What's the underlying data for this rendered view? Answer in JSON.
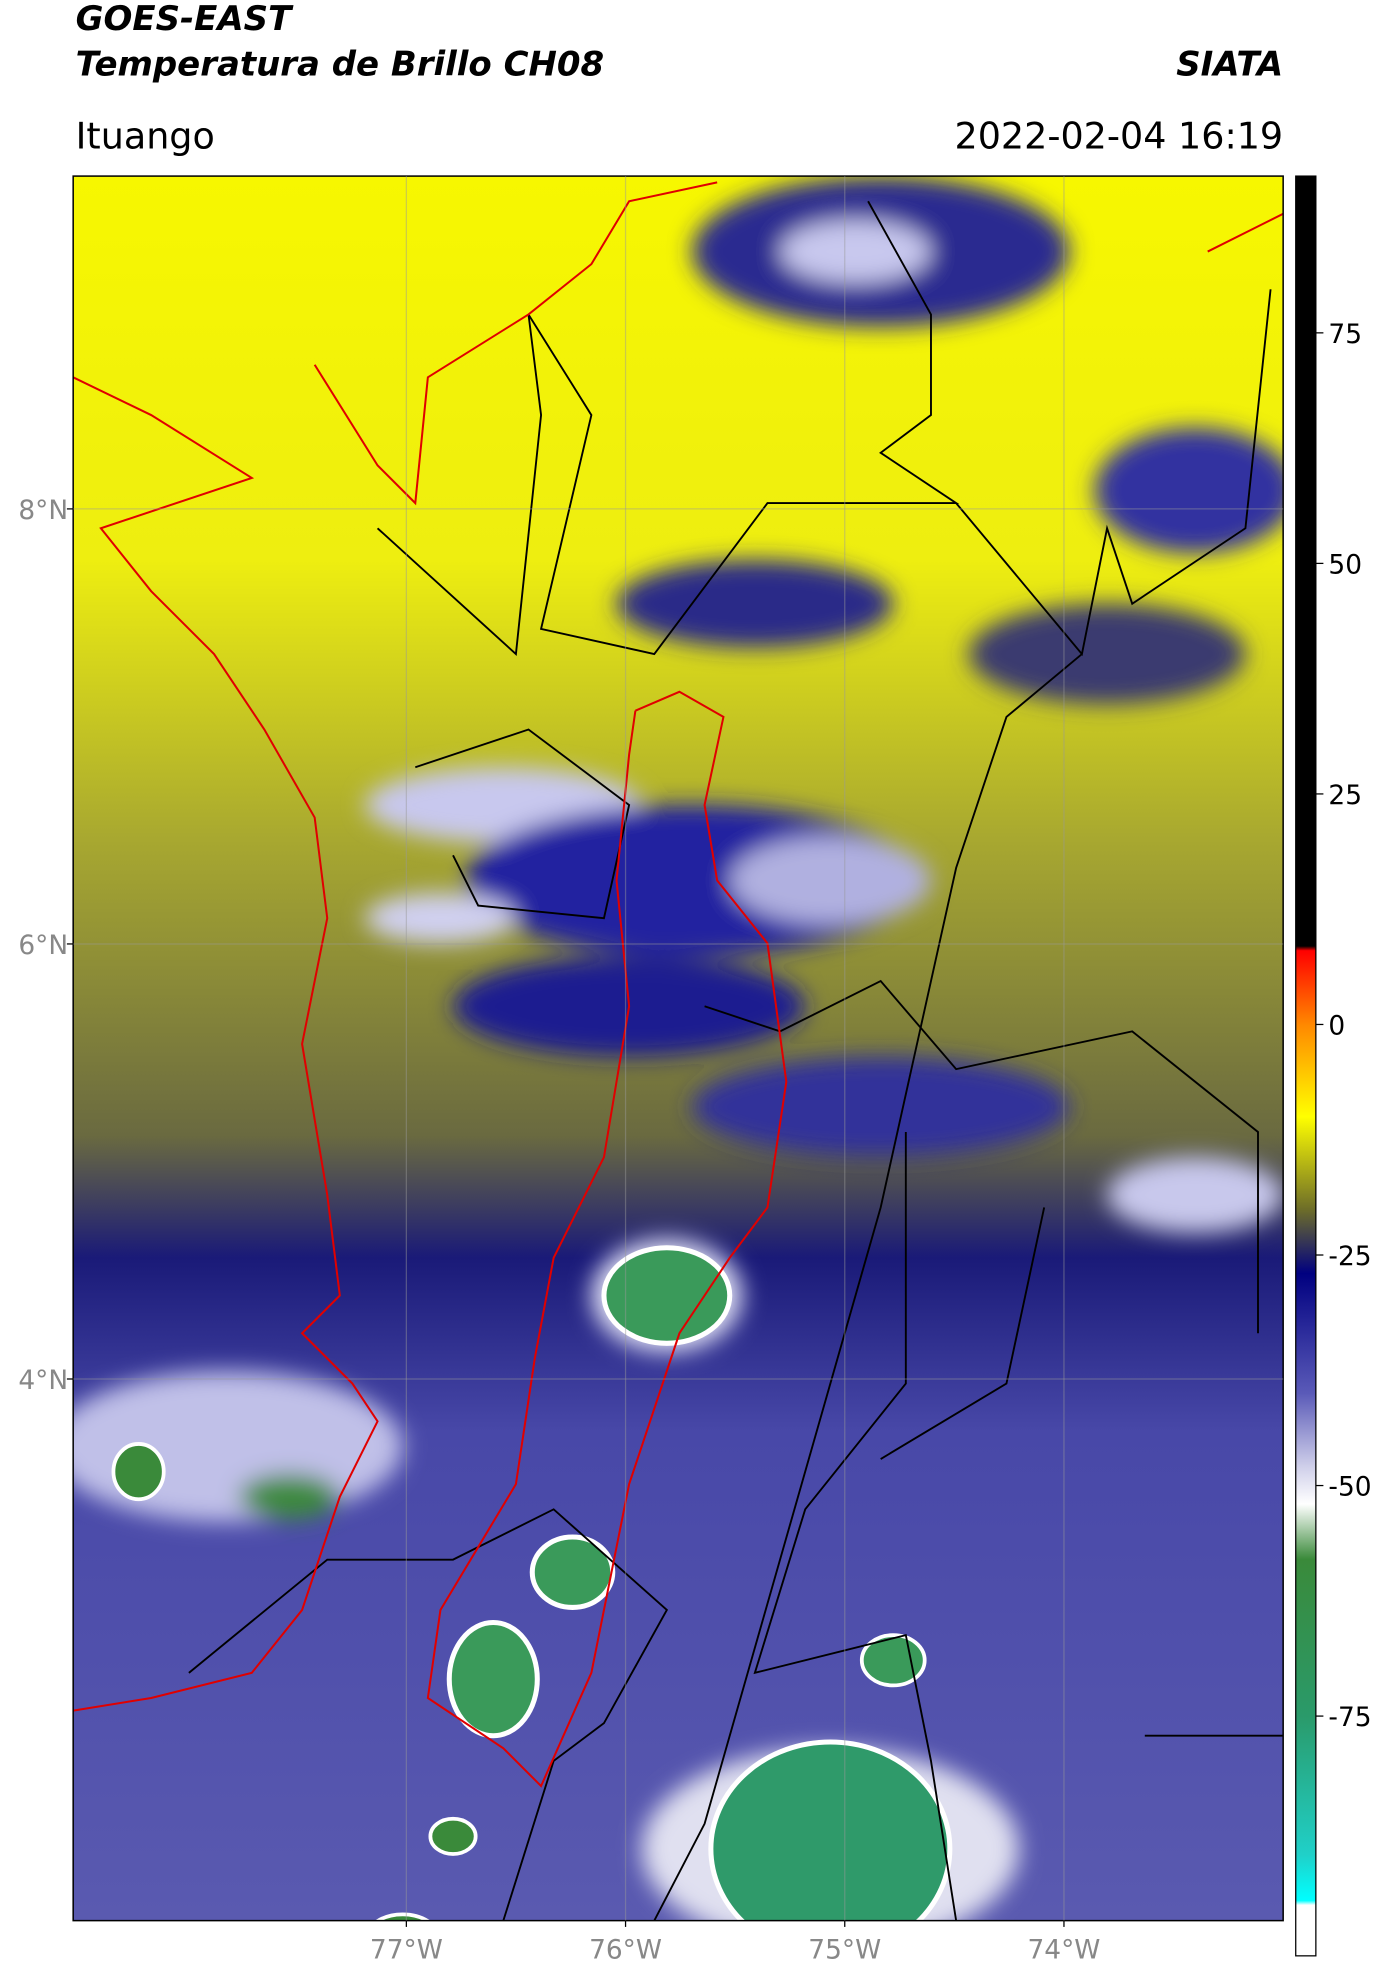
{
  "header": {
    "title": "GOES-EAST",
    "subtitle": "Temperatura de Brillo CH08",
    "source": "SIATA",
    "region": "Ituango",
    "datetime": "2022-02-04 16:19"
  },
  "map": {
    "xlim": [
      -78.52,
      -73.0
    ],
    "ylim": [
      1.51,
      9.53
    ],
    "xticks": [
      {
        "value": -77,
        "label": "77°W"
      },
      {
        "value": -76,
        "label": "76°W"
      },
      {
        "value": -75,
        "label": "75°W"
      },
      {
        "value": -74,
        "label": "74°W"
      }
    ],
    "yticks": [
      {
        "value": 8,
        "label": "8°N"
      },
      {
        "value": 6,
        "label": "6°N"
      },
      {
        "value": 4,
        "label": "4°N"
      }
    ],
    "grid": true
  },
  "colorbar": {
    "lim": [
      -101,
      92
    ],
    "ticks": [
      75,
      50,
      25,
      0,
      -25,
      -50,
      -75
    ],
    "stops": [
      {
        "value": 92,
        "color": "#000000"
      },
      {
        "value": 8.5,
        "color": "#000000"
      },
      {
        "value": 8,
        "color": "#ff0000"
      },
      {
        "value": 0,
        "color": "#ff8800"
      },
      {
        "value": -10,
        "color": "#ffff00"
      },
      {
        "value": -20,
        "color": "#6e6e28"
      },
      {
        "value": -27,
        "color": "#000080"
      },
      {
        "value": -40,
        "color": "#5a5ab8"
      },
      {
        "value": -48,
        "color": "#d0d0ea"
      },
      {
        "value": -52,
        "color": "#ffffff"
      },
      {
        "value": -58,
        "color": "#3a8a3a"
      },
      {
        "value": -75,
        "color": "#2a9a6a"
      },
      {
        "value": -90,
        "color": "#20d0c8"
      },
      {
        "value": -95,
        "color": "#00ffff"
      },
      {
        "value": -95.5,
        "color": "#ffffff"
      },
      {
        "value": -101,
        "color": "#ffffff"
      }
    ]
  }
}
